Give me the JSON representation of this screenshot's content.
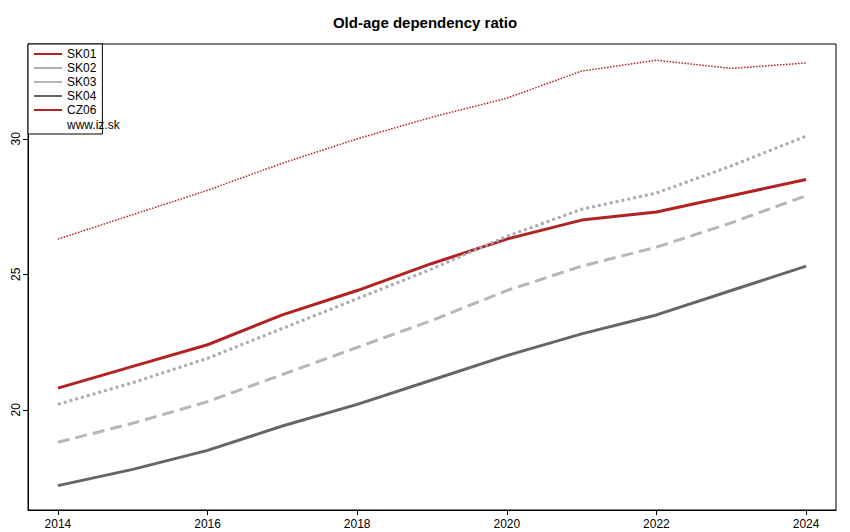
{
  "chart_data": {
    "type": "line",
    "title": "Old-age dependency ratio",
    "annotation": "www.iz.sk",
    "x": [
      2014,
      2015,
      2016,
      2017,
      2018,
      2019,
      2020,
      2021,
      2022,
      2023,
      2024
    ],
    "xlim": [
      2013.6,
      2024.4
    ],
    "xticks": [
      2014,
      2016,
      2018,
      2020,
      2022,
      2024
    ],
    "ylim": [
      16.3,
      33.5
    ],
    "yticks": [
      20,
      25,
      30
    ],
    "grid": false,
    "legend": "top-left",
    "series": [
      {
        "name": "SK01",
        "color": "#b22222",
        "line_style": "solid",
        "values": [
          20.8,
          21.6,
          22.4,
          23.5,
          24.4,
          25.4,
          26.3,
          27.0,
          27.3,
          27.9,
          28.5
        ]
      },
      {
        "name": "SK02",
        "color": "#a9abb5",
        "line_style": "dotted",
        "values": [
          20.2,
          21.0,
          21.9,
          23.0,
          24.1,
          25.2,
          26.4,
          27.4,
          28.0,
          29.0,
          30.1
        ]
      },
      {
        "name": "SK03",
        "color": "#b4b8be",
        "line_style": "dashed",
        "values": [
          18.8,
          19.5,
          20.3,
          21.3,
          22.3,
          23.3,
          24.4,
          25.3,
          26.0,
          26.9,
          27.9
        ]
      },
      {
        "name": "SK04",
        "color": "#666666",
        "line_style": "solid",
        "values": [
          17.2,
          17.8,
          18.5,
          19.4,
          20.2,
          21.1,
          22.0,
          22.8,
          23.5,
          24.4,
          25.3
        ]
      },
      {
        "name": "CZ06",
        "color": "#b22222",
        "line_style": "dotted",
        "values": [
          26.3,
          27.2,
          28.1,
          29.1,
          30.0,
          30.8,
          31.5,
          32.5,
          32.9,
          32.6,
          32.8
        ]
      }
    ]
  }
}
